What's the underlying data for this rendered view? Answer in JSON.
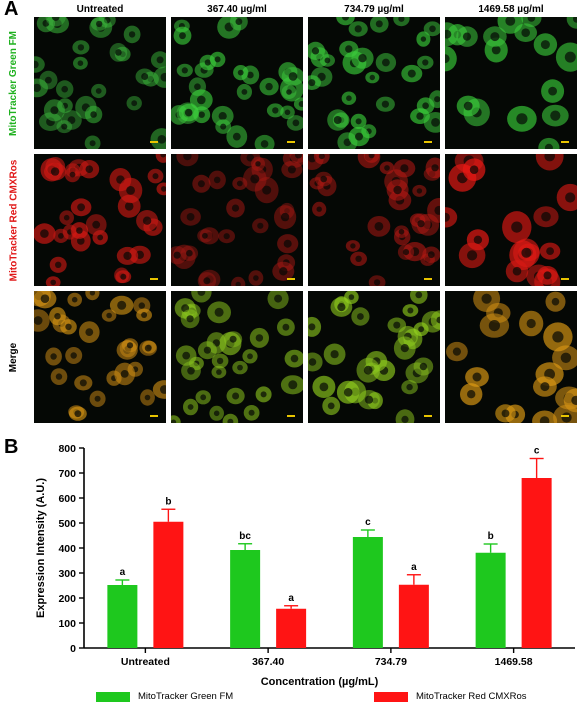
{
  "panels": {
    "a": "A",
    "b": "B"
  },
  "micrograph": {
    "columns": [
      "Untreated",
      "367.40 µg/ml",
      "734.79 µg/ml",
      "1469.58 µg/ml"
    ],
    "rows": [
      {
        "label": "MitoTracker Green FM",
        "label_color": "#1fb11f"
      },
      {
        "label": "MitoTracker Red CMXRos",
        "label_color": "#e01818"
      },
      {
        "label": "Merge",
        "label_color": "#000000"
      }
    ]
  },
  "chart_data": {
    "type": "bar",
    "categories": [
      "Untreated",
      "367.40",
      "734.79",
      "1469.58"
    ],
    "xlabel": "Concentration (µg/mL)",
    "ylabel": "Expression Intensity (A.U.)",
    "ylim": [
      0,
      800
    ],
    "yticks": [
      0,
      100,
      200,
      300,
      400,
      500,
      600,
      700,
      800
    ],
    "legend_position": "bottom",
    "series": [
      {
        "name": "MitoTracker Green FM",
        "color": "#1ec81e",
        "values": [
          252,
          392,
          444,
          381
        ],
        "errors": [
          20,
          25,
          28,
          35
        ],
        "labels": [
          "a",
          "bc",
          "c",
          "b"
        ]
      },
      {
        "name": "MitoTracker Red CMXRos",
        "color": "#ff1414",
        "values": [
          505,
          157,
          253,
          680
        ],
        "errors": [
          50,
          12,
          40,
          78
        ],
        "labels": [
          "b",
          "a",
          "a",
          "c"
        ]
      }
    ]
  }
}
